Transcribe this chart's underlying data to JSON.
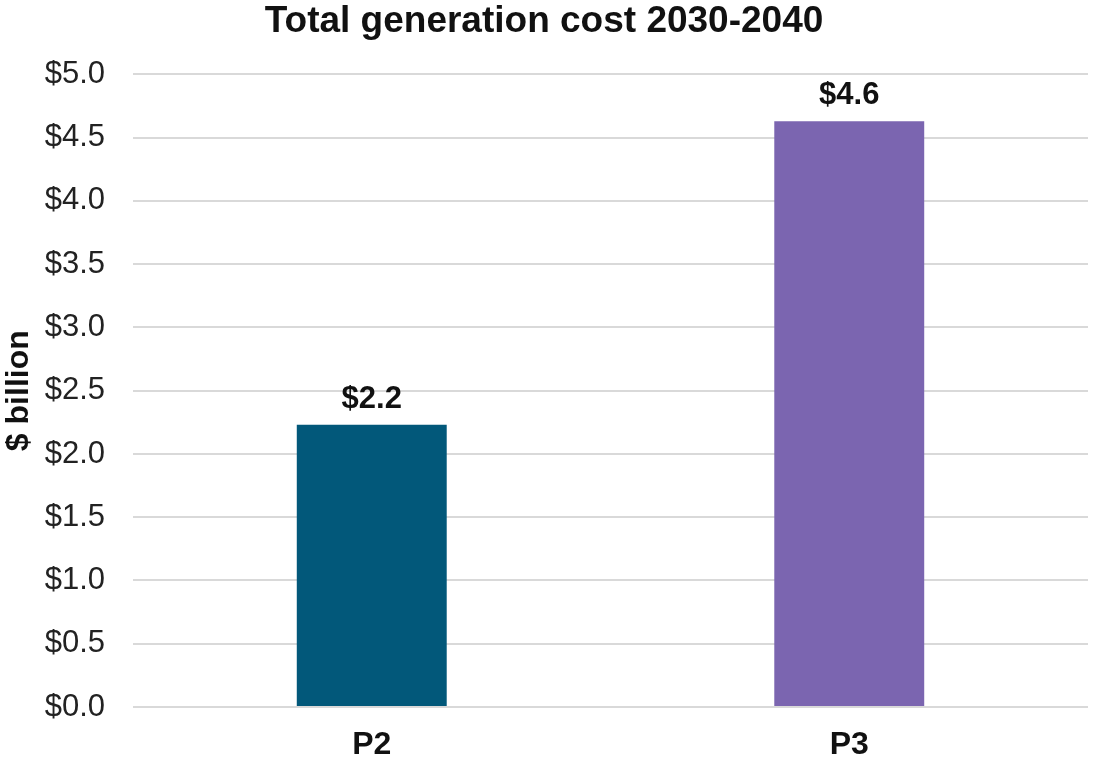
{
  "chart_data": {
    "type": "bar",
    "title": "Total generation cost 2030-2040",
    "ylabel": "$ billion",
    "categories": [
      "P2",
      "P3"
    ],
    "values": [
      2.23,
      4.63
    ],
    "colors": [
      "#02587a",
      "#7b65b0"
    ],
    "value_labels": [
      "$2.2",
      "$4.6"
    ],
    "ylim": [
      0,
      5
    ],
    "yticks": [
      {
        "value": 0,
        "label": "$0.0"
      },
      {
        "value": 0.5,
        "label": "$0.5"
      },
      {
        "value": 1,
        "label": "$1.0"
      },
      {
        "value": 1.5,
        "label": "$1.5"
      },
      {
        "value": 2,
        "label": "$2.0"
      },
      {
        "value": 2.5,
        "label": "$2.5"
      },
      {
        "value": 3,
        "label": "$3.0"
      },
      {
        "value": 3.5,
        "label": "$3.5"
      },
      {
        "value": 4,
        "label": "$4.0"
      },
      {
        "value": 4.5,
        "label": "$4.5"
      },
      {
        "value": 5,
        "label": "$5.0"
      }
    ],
    "grid": "y"
  }
}
